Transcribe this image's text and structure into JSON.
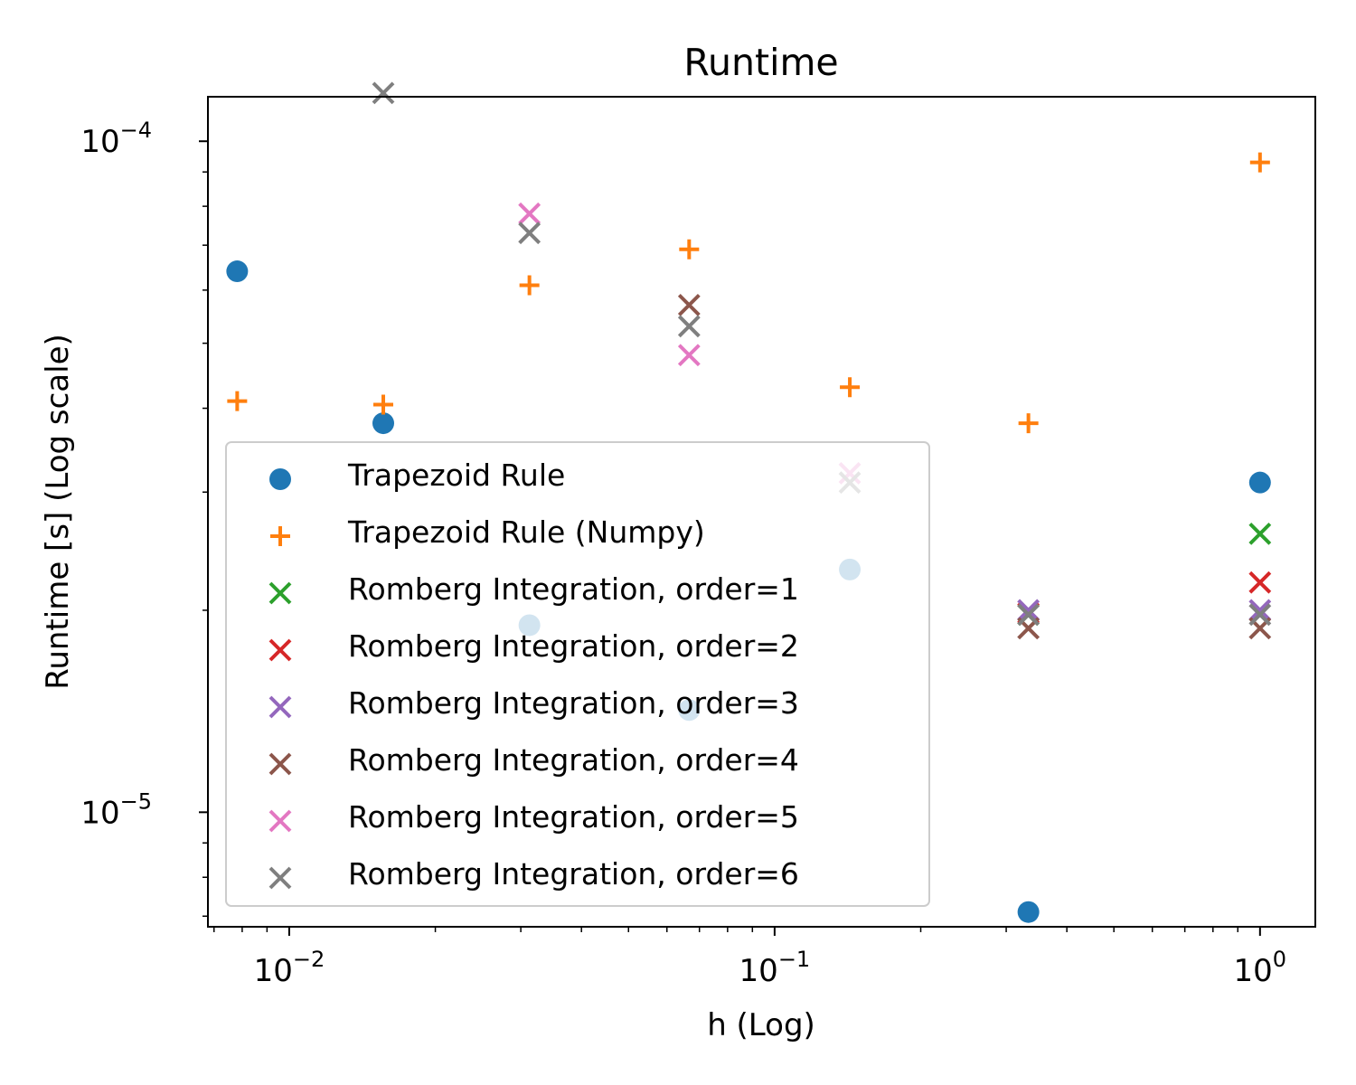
{
  "chart_data": {
    "type": "scatter",
    "title": "Runtime",
    "xlabel": "h (Log)",
    "ylabel": "Runtime [s] (Log scale)",
    "xscale": "log",
    "yscale": "log",
    "xlim": [
      0.0068,
      1.3
    ],
    "ylim": [
      6.75e-06,
      0.0001165
    ],
    "xticks": [
      {
        "value": 0.01,
        "base": "10",
        "exp": "−2"
      },
      {
        "value": 0.1,
        "base": "10",
        "exp": "−1"
      },
      {
        "value": 1,
        "base": "10",
        "exp": "0"
      }
    ],
    "yticks": [
      {
        "value": 1e-05,
        "base": "10",
        "exp": "−5"
      },
      {
        "value": 0.0001,
        "base": "10",
        "exp": "−4"
      }
    ],
    "grid": false,
    "legend_position": "lower left",
    "series": [
      {
        "name": "Trapezoid Rule",
        "marker": "circle",
        "color": "#1f77b4",
        "x": [
          0.0078125,
          0.015625,
          0.03125,
          0.0666667,
          0.142857,
          0.333333,
          1
        ],
        "y": [
          6.4e-05,
          3.8e-05,
          1.9e-05,
          1.42e-05,
          2.3e-05,
          7.1e-06,
          3.1e-05
        ]
      },
      {
        "name": "Trapezoid Rule (Numpy)",
        "marker": "plus",
        "color": "#ff7f0e",
        "x": [
          0.0078125,
          0.015625,
          0.03125,
          0.0666667,
          0.142857,
          0.333333,
          1
        ],
        "y": [
          4.1e-05,
          4.05e-05,
          6.1e-05,
          6.9e-05,
          4.3e-05,
          3.8e-05,
          9.3e-05
        ]
      },
      {
        "name": "Romberg Integration, order=1",
        "marker": "x",
        "color": "#2ca02c",
        "x": [
          0.333333,
          1
        ],
        "y": [
          1.97e-05,
          2.6e-05
        ]
      },
      {
        "name": "Romberg Integration, order=2",
        "marker": "x",
        "color": "#d62728",
        "x": [
          0.333333,
          1
        ],
        "y": [
          1.98e-05,
          2.2e-05
        ]
      },
      {
        "name": "Romberg Integration, order=3",
        "marker": "x",
        "color": "#9467bd",
        "x": [
          0.333333,
          1
        ],
        "y": [
          2e-05,
          2e-05
        ]
      },
      {
        "name": "Romberg Integration, order=4",
        "marker": "x",
        "color": "#8c564b",
        "x": [
          0.0666667,
          0.333333,
          1
        ],
        "y": [
          5.7e-05,
          1.88e-05,
          1.88e-05
        ]
      },
      {
        "name": "Romberg Integration, order=5",
        "marker": "x",
        "color": "#e377c2",
        "x": [
          0.03125,
          0.0666667,
          0.142857
        ],
        "y": [
          7.8e-05,
          4.8e-05,
          3.2e-05
        ]
      },
      {
        "name": "Romberg Integration, order=6",
        "marker": "x",
        "color": "#7f7f7f",
        "x": [
          0.015625,
          0.03125,
          0.0666667,
          0.142857,
          0.333333,
          1
        ],
        "y": [
          0.000118,
          7.3e-05,
          5.3e-05,
          3.1e-05,
          1.97e-05,
          1.97e-05
        ]
      }
    ]
  }
}
